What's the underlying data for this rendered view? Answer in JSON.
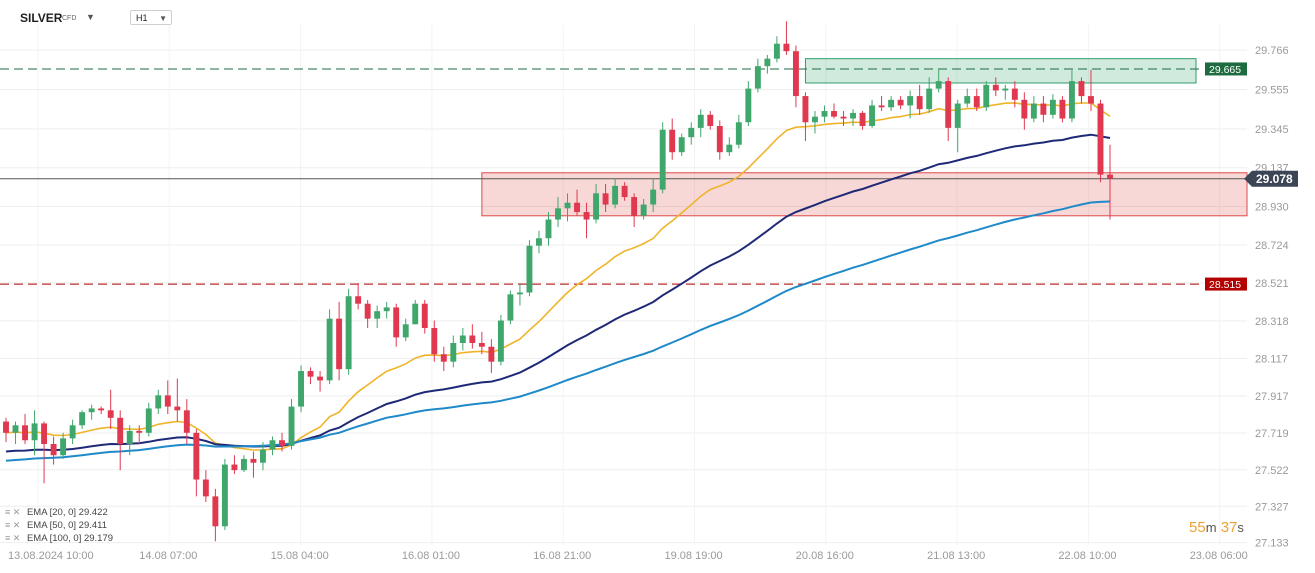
{
  "header": {
    "symbol": "SILVER",
    "symbol_sub": "CFD",
    "symbol_caret": "▼",
    "timeframe": "H1",
    "timeframe_caret": "▼"
  },
  "chart_data": {
    "type": "candlestick",
    "y_axis_labels": [
      "29.766",
      "29.555",
      "29.345",
      "29.137",
      "28.930",
      "28.724",
      "28.521",
      "28.318",
      "28.117",
      "27.917",
      "27.719",
      "27.522",
      "27.327",
      "27.133"
    ],
    "x_axis_labels": [
      "13.08.2024  10:00",
      "14.08  07:00",
      "15.08  04:00",
      "16.08  01:00",
      "16.08  21:00",
      "19.08  19:00",
      "20.08  16:00",
      "21.08  13:00",
      "22.08  10:00",
      "23.08  06:00"
    ],
    "ylim": [
      27.12,
      29.9
    ],
    "levels": {
      "resistance": {
        "value": 29.665,
        "label": "29.665",
        "color": "#1d6b3f"
      },
      "support": {
        "value": 28.515,
        "label": "28.515",
        "color": "#b30000"
      },
      "current": {
        "value": 29.078,
        "label": "29.078",
        "color": "#3c4556"
      }
    },
    "zones": [
      {
        "name": "resistance-zone",
        "y_top": 29.72,
        "y_bottom": 29.59,
        "color": "#2e9e6b"
      },
      {
        "name": "support-zone",
        "y_top": 29.11,
        "y_bottom": 28.88,
        "color": "#e04848"
      }
    ],
    "candles": [
      {
        "o": 27.78,
        "h": 27.8,
        "l": 27.67,
        "c": 27.72
      },
      {
        "o": 27.72,
        "h": 27.78,
        "l": 27.66,
        "c": 27.76
      },
      {
        "o": 27.76,
        "h": 27.82,
        "l": 27.66,
        "c": 27.68
      },
      {
        "o": 27.68,
        "h": 27.84,
        "l": 27.6,
        "c": 27.77
      },
      {
        "o": 27.77,
        "h": 27.78,
        "l": 27.45,
        "c": 27.66
      },
      {
        "o": 27.66,
        "h": 27.7,
        "l": 27.55,
        "c": 27.6
      },
      {
        "o": 27.6,
        "h": 27.72,
        "l": 27.58,
        "c": 27.69
      },
      {
        "o": 27.69,
        "h": 27.79,
        "l": 27.66,
        "c": 27.76
      },
      {
        "o": 27.76,
        "h": 27.84,
        "l": 27.74,
        "c": 27.83
      },
      {
        "o": 27.83,
        "h": 27.87,
        "l": 27.79,
        "c": 27.85
      },
      {
        "o": 27.85,
        "h": 27.86,
        "l": 27.82,
        "c": 27.84
      },
      {
        "o": 27.84,
        "h": 27.95,
        "l": 27.74,
        "c": 27.8
      },
      {
        "o": 27.8,
        "h": 27.84,
        "l": 27.52,
        "c": 27.66
      },
      {
        "o": 27.66,
        "h": 27.76,
        "l": 27.6,
        "c": 27.73
      },
      {
        "o": 27.73,
        "h": 27.76,
        "l": 27.66,
        "c": 27.72
      },
      {
        "o": 27.72,
        "h": 27.88,
        "l": 27.7,
        "c": 27.85
      },
      {
        "o": 27.85,
        "h": 27.95,
        "l": 27.82,
        "c": 27.92
      },
      {
        "o": 27.92,
        "h": 28.0,
        "l": 27.82,
        "c": 27.86
      },
      {
        "o": 27.86,
        "h": 28.01,
        "l": 27.78,
        "c": 27.84
      },
      {
        "o": 27.84,
        "h": 27.9,
        "l": 27.66,
        "c": 27.72
      },
      {
        "o": 27.72,
        "h": 27.74,
        "l": 27.38,
        "c": 27.47
      },
      {
        "o": 27.47,
        "h": 27.52,
        "l": 27.35,
        "c": 27.38
      },
      {
        "o": 27.38,
        "h": 27.42,
        "l": 27.14,
        "c": 27.22
      },
      {
        "o": 27.22,
        "h": 27.58,
        "l": 27.2,
        "c": 27.55
      },
      {
        "o": 27.55,
        "h": 27.6,
        "l": 27.5,
        "c": 27.52
      },
      {
        "o": 27.52,
        "h": 27.6,
        "l": 27.51,
        "c": 27.58
      },
      {
        "o": 27.58,
        "h": 27.62,
        "l": 27.48,
        "c": 27.56
      },
      {
        "o": 27.56,
        "h": 27.67,
        "l": 27.52,
        "c": 27.63
      },
      {
        "o": 27.63,
        "h": 27.7,
        "l": 27.6,
        "c": 27.68
      },
      {
        "o": 27.68,
        "h": 27.72,
        "l": 27.62,
        "c": 27.65
      },
      {
        "o": 27.65,
        "h": 27.9,
        "l": 27.63,
        "c": 27.86
      },
      {
        "o": 27.86,
        "h": 28.08,
        "l": 27.83,
        "c": 28.05
      },
      {
        "o": 28.05,
        "h": 28.07,
        "l": 27.98,
        "c": 28.02
      },
      {
        "o": 28.02,
        "h": 28.05,
        "l": 27.94,
        "c": 28.0
      },
      {
        "o": 28.0,
        "h": 28.38,
        "l": 27.98,
        "c": 28.33
      },
      {
        "o": 28.33,
        "h": 28.42,
        "l": 28.0,
        "c": 28.06
      },
      {
        "o": 28.06,
        "h": 28.49,
        "l": 28.03,
        "c": 28.45
      },
      {
        "o": 28.45,
        "h": 28.52,
        "l": 28.38,
        "c": 28.41
      },
      {
        "o": 28.41,
        "h": 28.43,
        "l": 28.28,
        "c": 28.33
      },
      {
        "o": 28.33,
        "h": 28.4,
        "l": 28.28,
        "c": 28.37
      },
      {
        "o": 28.37,
        "h": 28.42,
        "l": 28.33,
        "c": 28.39
      },
      {
        "o": 28.39,
        "h": 28.41,
        "l": 28.18,
        "c": 28.23
      },
      {
        "o": 28.23,
        "h": 28.33,
        "l": 28.21,
        "c": 28.3
      },
      {
        "o": 28.3,
        "h": 28.43,
        "l": 28.3,
        "c": 28.41
      },
      {
        "o": 28.41,
        "h": 28.43,
        "l": 28.25,
        "c": 28.28
      },
      {
        "o": 28.28,
        "h": 28.32,
        "l": 28.1,
        "c": 28.14
      },
      {
        "o": 28.14,
        "h": 28.18,
        "l": 28.05,
        "c": 28.1
      },
      {
        "o": 28.1,
        "h": 28.24,
        "l": 28.07,
        "c": 28.2
      },
      {
        "o": 28.2,
        "h": 28.28,
        "l": 28.16,
        "c": 28.24
      },
      {
        "o": 28.24,
        "h": 28.3,
        "l": 28.17,
        "c": 28.2
      },
      {
        "o": 28.2,
        "h": 28.26,
        "l": 28.14,
        "c": 28.18
      },
      {
        "o": 28.18,
        "h": 28.22,
        "l": 28.04,
        "c": 28.1
      },
      {
        "o": 28.1,
        "h": 28.35,
        "l": 28.08,
        "c": 28.32
      },
      {
        "o": 28.32,
        "h": 28.48,
        "l": 28.3,
        "c": 28.46
      },
      {
        "o": 28.46,
        "h": 28.52,
        "l": 28.4,
        "c": 28.47
      },
      {
        "o": 28.47,
        "h": 28.75,
        "l": 28.45,
        "c": 28.72
      },
      {
        "o": 28.72,
        "h": 28.8,
        "l": 28.68,
        "c": 28.76
      },
      {
        "o": 28.76,
        "h": 28.9,
        "l": 28.72,
        "c": 28.86
      },
      {
        "o": 28.86,
        "h": 28.98,
        "l": 28.82,
        "c": 28.92
      },
      {
        "o": 28.92,
        "h": 29.0,
        "l": 28.85,
        "c": 28.95
      },
      {
        "o": 28.95,
        "h": 29.02,
        "l": 28.88,
        "c": 28.9
      },
      {
        "o": 28.9,
        "h": 28.95,
        "l": 28.76,
        "c": 28.86
      },
      {
        "o": 28.86,
        "h": 29.05,
        "l": 28.84,
        "c": 29.0
      },
      {
        "o": 29.0,
        "h": 29.05,
        "l": 28.9,
        "c": 28.94
      },
      {
        "o": 28.94,
        "h": 29.08,
        "l": 28.92,
        "c": 29.04
      },
      {
        "o": 29.04,
        "h": 29.06,
        "l": 28.96,
        "c": 28.98
      },
      {
        "o": 28.98,
        "h": 29.0,
        "l": 28.82,
        "c": 28.88
      },
      {
        "o": 28.88,
        "h": 28.97,
        "l": 28.86,
        "c": 28.94
      },
      {
        "o": 28.94,
        "h": 29.08,
        "l": 28.9,
        "c": 29.02
      },
      {
        "o": 29.02,
        "h": 29.38,
        "l": 29.0,
        "c": 29.34
      },
      {
        "o": 29.34,
        "h": 29.4,
        "l": 29.18,
        "c": 29.22
      },
      {
        "o": 29.22,
        "h": 29.32,
        "l": 29.2,
        "c": 29.3
      },
      {
        "o": 29.3,
        "h": 29.38,
        "l": 29.26,
        "c": 29.35
      },
      {
        "o": 29.35,
        "h": 29.45,
        "l": 29.3,
        "c": 29.42
      },
      {
        "o": 29.42,
        "h": 29.44,
        "l": 29.34,
        "c": 29.36
      },
      {
        "o": 29.36,
        "h": 29.39,
        "l": 29.18,
        "c": 29.22
      },
      {
        "o": 29.22,
        "h": 29.3,
        "l": 29.2,
        "c": 29.26
      },
      {
        "o": 29.26,
        "h": 29.42,
        "l": 29.24,
        "c": 29.38
      },
      {
        "o": 29.38,
        "h": 29.6,
        "l": 29.36,
        "c": 29.56
      },
      {
        "o": 29.56,
        "h": 29.72,
        "l": 29.54,
        "c": 29.68
      },
      {
        "o": 29.68,
        "h": 29.74,
        "l": 29.64,
        "c": 29.72
      },
      {
        "o": 29.72,
        "h": 29.84,
        "l": 29.7,
        "c": 29.8
      },
      {
        "o": 29.8,
        "h": 29.92,
        "l": 29.74,
        "c": 29.76
      },
      {
        "o": 29.76,
        "h": 29.79,
        "l": 29.46,
        "c": 29.52
      },
      {
        "o": 29.52,
        "h": 29.54,
        "l": 29.28,
        "c": 29.38
      },
      {
        "o": 29.38,
        "h": 29.44,
        "l": 29.32,
        "c": 29.41
      },
      {
        "o": 29.41,
        "h": 29.47,
        "l": 29.38,
        "c": 29.44
      },
      {
        "o": 29.44,
        "h": 29.48,
        "l": 29.4,
        "c": 29.41
      },
      {
        "o": 29.41,
        "h": 29.44,
        "l": 29.36,
        "c": 29.4
      },
      {
        "o": 29.4,
        "h": 29.45,
        "l": 29.36,
        "c": 29.43
      },
      {
        "o": 29.43,
        "h": 29.44,
        "l": 29.34,
        "c": 29.36
      },
      {
        "o": 29.36,
        "h": 29.5,
        "l": 29.35,
        "c": 29.47
      },
      {
        "o": 29.47,
        "h": 29.52,
        "l": 29.44,
        "c": 29.46
      },
      {
        "o": 29.46,
        "h": 29.52,
        "l": 29.44,
        "c": 29.5
      },
      {
        "o": 29.5,
        "h": 29.52,
        "l": 29.45,
        "c": 29.47
      },
      {
        "o": 29.47,
        "h": 29.55,
        "l": 29.4,
        "c": 29.52
      },
      {
        "o": 29.52,
        "h": 29.58,
        "l": 29.42,
        "c": 29.45
      },
      {
        "o": 29.45,
        "h": 29.62,
        "l": 29.43,
        "c": 29.56
      },
      {
        "o": 29.56,
        "h": 29.66,
        "l": 29.54,
        "c": 29.6
      },
      {
        "o": 29.6,
        "h": 29.62,
        "l": 29.28,
        "c": 29.35
      },
      {
        "o": 29.35,
        "h": 29.5,
        "l": 29.22,
        "c": 29.48
      },
      {
        "o": 29.48,
        "h": 29.56,
        "l": 29.46,
        "c": 29.52
      },
      {
        "o": 29.52,
        "h": 29.56,
        "l": 29.44,
        "c": 29.46
      },
      {
        "o": 29.46,
        "h": 29.6,
        "l": 29.44,
        "c": 29.58
      },
      {
        "o": 29.58,
        "h": 29.62,
        "l": 29.52,
        "c": 29.55
      },
      {
        "o": 29.55,
        "h": 29.58,
        "l": 29.5,
        "c": 29.56
      },
      {
        "o": 29.56,
        "h": 29.6,
        "l": 29.46,
        "c": 29.5
      },
      {
        "o": 29.5,
        "h": 29.54,
        "l": 29.34,
        "c": 29.4
      },
      {
        "o": 29.4,
        "h": 29.52,
        "l": 29.38,
        "c": 29.48
      },
      {
        "o": 29.48,
        "h": 29.52,
        "l": 29.38,
        "c": 29.42
      },
      {
        "o": 29.42,
        "h": 29.53,
        "l": 29.4,
        "c": 29.5
      },
      {
        "o": 29.5,
        "h": 29.52,
        "l": 29.38,
        "c": 29.4
      },
      {
        "o": 29.4,
        "h": 29.66,
        "l": 29.38,
        "c": 29.6
      },
      {
        "o": 29.6,
        "h": 29.62,
        "l": 29.48,
        "c": 29.52
      },
      {
        "o": 29.52,
        "h": 29.66,
        "l": 29.44,
        "c": 29.48
      },
      {
        "o": 29.48,
        "h": 29.5,
        "l": 29.06,
        "c": 29.1
      },
      {
        "o": 29.1,
        "h": 29.26,
        "l": 28.86,
        "c": 29.08
      }
    ],
    "ema_series": [
      {
        "name": "EMA [20, 0] 29.422",
        "color": "#f0b429",
        "width": 1.6
      },
      {
        "name": "EMA [50, 0] 29.411",
        "color": "#1e2a78",
        "width": 2
      },
      {
        "name": "EMA [100, 0] 29.179",
        "color": "#1f8ac9",
        "width": 2
      }
    ],
    "grid": true,
    "up_color": "#3fa66c",
    "down_color": "#e0384f"
  },
  "legend": {
    "icons": "≡ ✕"
  },
  "countdown": {
    "minutes": "55",
    "min_unit": "m",
    "seconds": "37",
    "sec_unit": "s"
  }
}
